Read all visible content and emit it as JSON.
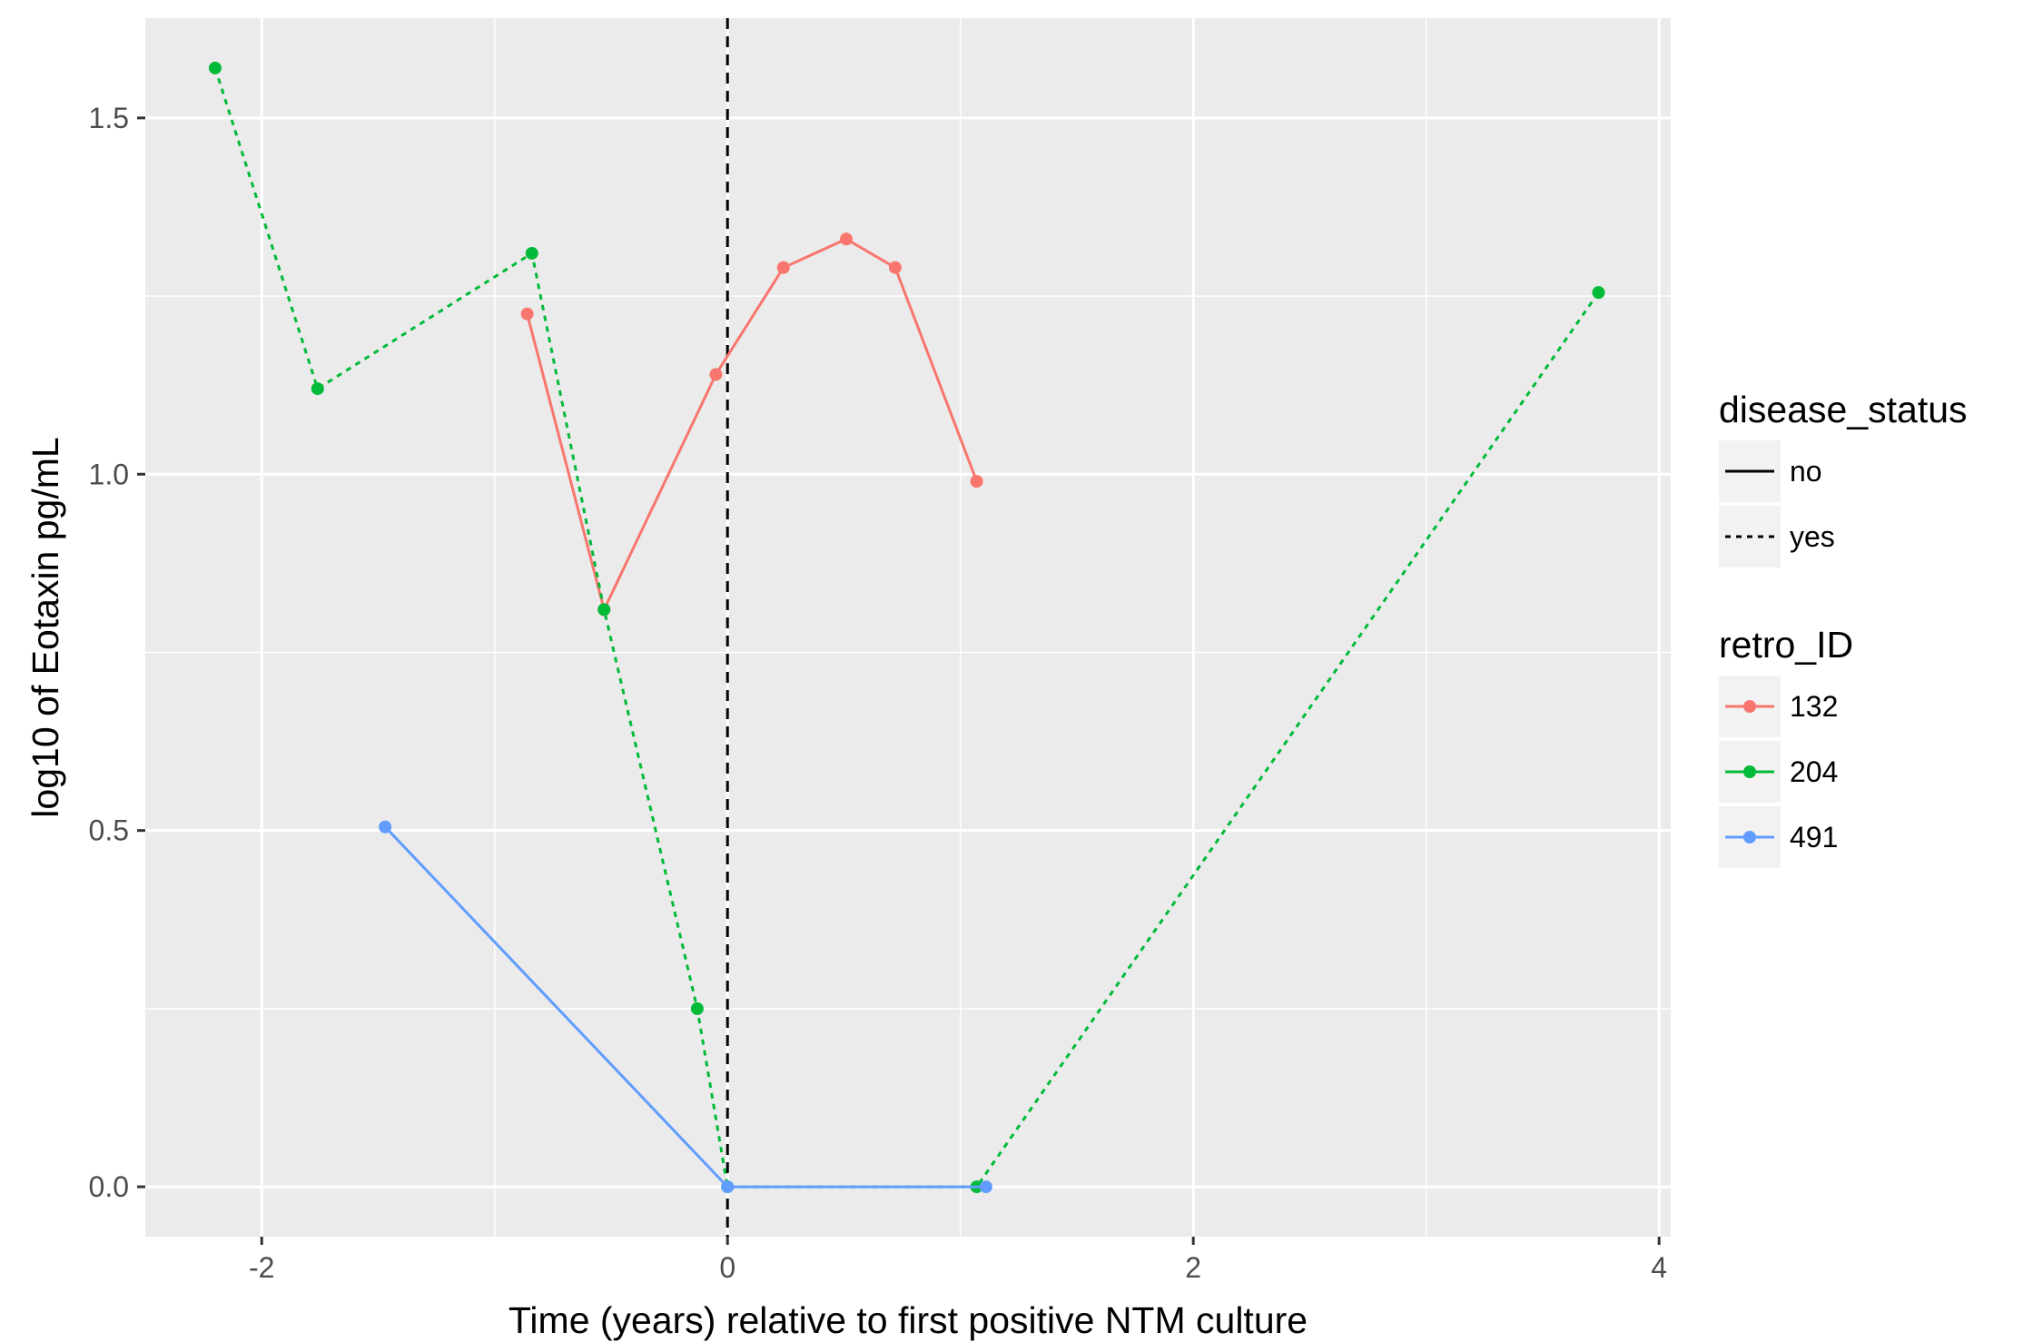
{
  "chart_data": {
    "type": "line",
    "xlabel": "Time (years) relative to first positive NTM culture",
    "ylabel": "log10 of Eotaxin pg/mL",
    "xlim": [
      -2.5,
      4.05
    ],
    "ylim": [
      -0.07,
      1.64
    ],
    "x_ticks": [
      -2,
      0,
      2,
      4
    ],
    "x_tick_labels": [
      "-2",
      "0",
      "2",
      "4"
    ],
    "y_ticks": [
      0.0,
      0.5,
      1.0,
      1.5
    ],
    "y_tick_labels": [
      "0.0",
      "0.5",
      "1.0",
      "1.5"
    ],
    "vline_x": 0,
    "grid": true,
    "legend_position": "right",
    "legends": [
      {
        "title": "disease_status",
        "entries": [
          {
            "label": "no",
            "linetype": "solid"
          },
          {
            "label": "yes",
            "linetype": "dashed"
          }
        ]
      },
      {
        "title": "retro_ID",
        "entries": [
          {
            "label": "132",
            "color": "#F8766D"
          },
          {
            "label": "204",
            "color": "#00BA38"
          },
          {
            "label": "491",
            "color": "#619CFF"
          }
        ]
      }
    ],
    "series": [
      {
        "name": "132",
        "color": "#F8766D",
        "linetype": "solid",
        "points": [
          [
            -0.86,
            1.225
          ],
          [
            -0.53,
            0.81
          ],
          [
            -0.05,
            1.14
          ],
          [
            0.24,
            1.29
          ],
          [
            0.51,
            1.33
          ],
          [
            0.72,
            1.29
          ],
          [
            1.07,
            0.99
          ]
        ]
      },
      {
        "name": "204",
        "color": "#00BA38",
        "linetype": "dashed",
        "points": [
          [
            -2.2,
            1.57
          ],
          [
            -1.76,
            1.12
          ],
          [
            -0.84,
            1.31
          ],
          [
            -0.53,
            0.81
          ],
          [
            -0.13,
            0.25
          ],
          [
            0.0,
            0.0
          ],
          [
            1.07,
            0.0
          ],
          [
            3.74,
            1.255
          ]
        ]
      },
      {
        "name": "491",
        "color": "#619CFF",
        "linetype": "solid",
        "points": [
          [
            -1.47,
            0.505
          ],
          [
            0.0,
            0.0
          ],
          [
            1.11,
            0.0
          ]
        ]
      }
    ]
  }
}
